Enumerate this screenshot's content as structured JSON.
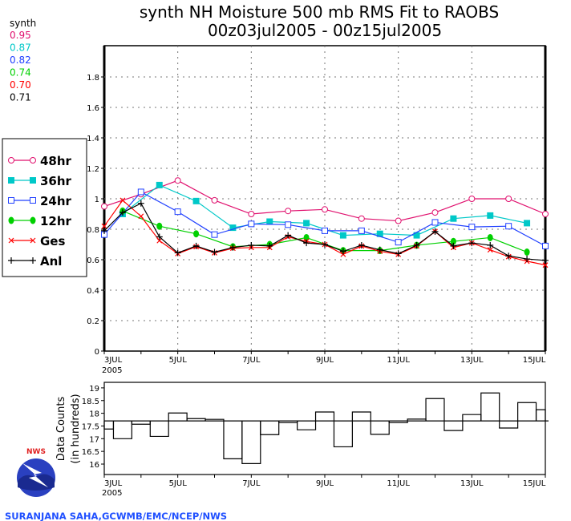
{
  "title": {
    "line1": "synth NH Moisture 500 mb RMS Fit to RAOBS",
    "line2": "00z03jul2005 - 00z15jul2005"
  },
  "stats": {
    "header": "synth",
    "values": [
      {
        "text": "0.95",
        "color": "#e0106e"
      },
      {
        "text": "0.87",
        "color": "#00c8c8"
      },
      {
        "text": "0.82",
        "color": "#2040ff"
      },
      {
        "text": "0.74",
        "color": "#00d000"
      },
      {
        "text": "0.70",
        "color": "#ff0000"
      },
      {
        "text": "0.71",
        "color": "#000000"
      }
    ]
  },
  "credit": "SURANJANA SAHA,GCWMB/EMC/NCEP/NWS",
  "logo_text": "NATIONAL WEATHER SERVICE",
  "chart_data": [
    {
      "type": "line",
      "title": "synth NH Moisture 500 mb RMS Fit to RAOBS",
      "xlim_days": [
        3,
        15
      ],
      "ylim": [
        0,
        2
      ],
      "yticks": [
        "0",
        "0.2",
        "0.4",
        "0.6",
        "0.8",
        "1",
        "1.2",
        "1.4",
        "1.6",
        "1.8"
      ],
      "xticks": [
        {
          "day": 3,
          "label": "3JUL",
          "sub": "2005"
        },
        {
          "day": 5,
          "label": "5JUL"
        },
        {
          "day": 7,
          "label": "7JUL"
        },
        {
          "day": 9,
          "label": "9JUL"
        },
        {
          "day": 11,
          "label": "11JUL"
        },
        {
          "day": 13,
          "label": "13JUL"
        },
        {
          "day": 15,
          "label": "15JUL"
        }
      ],
      "grid": true,
      "legend_placement": "left",
      "series": [
        {
          "name": "48hr",
          "color": "#e0106e",
          "marker": "open-circle",
          "x": [
            3,
            4,
            5,
            6,
            7,
            8,
            9,
            10,
            11,
            12,
            13,
            14,
            15
          ],
          "values": [
            0.95,
            1.03,
            1.12,
            0.99,
            0.9,
            0.92,
            0.93,
            0.87,
            0.855,
            0.91,
            1.0,
            1.0,
            0.9
          ]
        },
        {
          "name": "36hr",
          "color": "#00c8c8",
          "marker": "filled-square",
          "x": [
            3.5,
            4.5,
            5.5,
            6.5,
            7.5,
            8.5,
            9.5,
            10.5,
            11.5,
            12.5,
            13.5,
            14.5
          ],
          "values": [
            0.9,
            1.09,
            0.985,
            0.81,
            0.85,
            0.84,
            0.76,
            0.77,
            0.76,
            0.87,
            0.89,
            0.84
          ]
        },
        {
          "name": "24hr",
          "color": "#2040ff",
          "marker": "open-square",
          "x": [
            3,
            4,
            5,
            6,
            7,
            8,
            9,
            10,
            11,
            12,
            13,
            14,
            15
          ],
          "values": [
            0.765,
            1.045,
            0.915,
            0.765,
            0.835,
            0.83,
            0.79,
            0.79,
            0.715,
            0.845,
            0.815,
            0.82,
            0.69
          ]
        },
        {
          "name": "12hr",
          "color": "#00d000",
          "marker": "filled-circle",
          "x": [
            3.5,
            4.5,
            5.5,
            6.5,
            7.5,
            8.5,
            9.5,
            10.5,
            11.5,
            12.5,
            13.5,
            14.5
          ],
          "values": [
            0.92,
            0.82,
            0.77,
            0.685,
            0.7,
            0.745,
            0.66,
            0.66,
            0.695,
            0.72,
            0.745,
            0.65
          ]
        },
        {
          "name": "Ges",
          "color": "#ff0000",
          "marker": "x",
          "x": [
            3,
            3.5,
            4,
            4.5,
            5,
            5.5,
            6,
            6.5,
            7,
            7.5,
            8,
            8.5,
            9,
            9.5,
            10,
            10.5,
            11,
            11.5,
            12,
            12.5,
            13,
            13.5,
            14,
            14.5,
            15
          ],
          "values": [
            0.82,
            0.99,
            0.885,
            0.725,
            0.64,
            0.685,
            0.645,
            0.675,
            0.68,
            0.68,
            0.75,
            0.72,
            0.7,
            0.635,
            0.69,
            0.655,
            0.635,
            0.69,
            0.785,
            0.68,
            0.71,
            0.665,
            0.62,
            0.59,
            0.565
          ]
        },
        {
          "name": "Anl",
          "color": "#000000",
          "marker": "plus",
          "x": [
            3,
            3.5,
            4,
            4.5,
            5,
            5.5,
            6,
            6.5,
            7,
            7.5,
            8,
            8.5,
            9,
            9.5,
            10,
            10.5,
            11,
            11.5,
            12,
            12.5,
            13,
            13.5,
            14,
            14.5,
            15
          ],
          "values": [
            0.79,
            0.91,
            0.97,
            0.75,
            0.645,
            0.69,
            0.65,
            0.68,
            0.695,
            0.69,
            0.76,
            0.71,
            0.7,
            0.655,
            0.695,
            0.665,
            0.64,
            0.695,
            0.785,
            0.69,
            0.71,
            0.695,
            0.625,
            0.605,
            0.595
          ]
        }
      ]
    },
    {
      "type": "bar",
      "ylabel": "Data Counts",
      "ylabel2": "(in hundreds)",
      "ylim": [
        15.6,
        19.2
      ],
      "yticks": [
        "16",
        "16.5",
        "17",
        "17.5",
        "18",
        "18.5",
        "19"
      ],
      "xticks": [
        {
          "day": 3,
          "label": "3JUL",
          "sub": "2005"
        },
        {
          "day": 5,
          "label": "5JUL"
        },
        {
          "day": 7,
          "label": "7JUL"
        },
        {
          "day": 9,
          "label": "9JUL"
        },
        {
          "day": 11,
          "label": "11JUL"
        },
        {
          "day": 13,
          "label": "13JUL"
        },
        {
          "day": 15,
          "label": "15JUL"
        }
      ],
      "mean": 17.7,
      "x": [
        3,
        3.5,
        4,
        4.5,
        5,
        5.5,
        6,
        6.5,
        7,
        7.5,
        8,
        8.5,
        9,
        9.5,
        10,
        10.5,
        11,
        11.5,
        12,
        12.5,
        13,
        13.5,
        14,
        14.5,
        15
      ],
      "values": [
        17.38,
        17.0,
        17.57,
        17.09,
        18.01,
        17.79,
        17.76,
        16.21,
        16.02,
        17.16,
        17.63,
        17.35,
        18.05,
        16.68,
        18.05,
        17.17,
        17.63,
        17.77,
        18.58,
        17.32,
        17.95,
        18.8,
        17.42,
        18.42,
        18.14
      ]
    }
  ]
}
